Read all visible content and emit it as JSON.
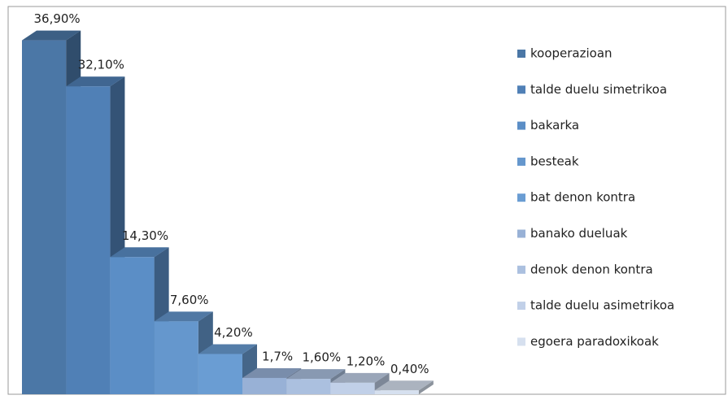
{
  "chart_data": {
    "type": "bar3d",
    "categories": [
      "kooperazioan",
      "talde duelu simetrikoa",
      "bakarka",
      "besteak",
      "bat denon kontra",
      "banako dueluak",
      "denok denon kontra",
      "talde duelu asimetrikoa",
      "egoera paradoxikoak"
    ],
    "values": [
      36.9,
      32.1,
      14.3,
      7.6,
      4.2,
      1.7,
      1.6,
      1.2,
      0.4
    ],
    "value_labels": [
      "36,90%",
      "32,10%",
      "14,30%",
      "7,60%",
      "4,20%",
      "1,7%",
      "1,60%",
      "1,20%",
      "0,40%"
    ],
    "colors": [
      "#4b77a6",
      "#5080b6",
      "#5b8ec6",
      "#6597cd",
      "#6a9dd3",
      "#98b1d6",
      "#abc0df",
      "#c1d0e8",
      "#d6e0ef"
    ],
    "legend": "right"
  }
}
